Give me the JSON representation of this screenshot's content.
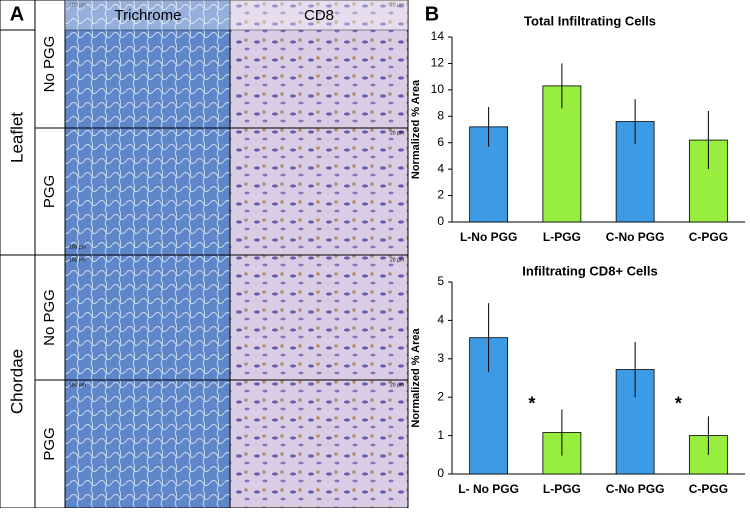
{
  "panel_a": {
    "label": "A",
    "columns": [
      "Trichrome",
      "CD8"
    ],
    "groups": [
      "Leaflet",
      "Chordae"
    ],
    "rows": [
      "No PGG",
      "PGG",
      "No PGG",
      "PGG"
    ],
    "scale_bars": [
      [
        "100 µm",
        "20 µm"
      ],
      [
        "100 µm",
        "20 µm"
      ],
      [
        "100 µm",
        "20 µm"
      ],
      [
        "100 µm",
        "20 µm"
      ]
    ]
  },
  "panel_b": {
    "label": "B"
  },
  "chart_data": [
    {
      "type": "bar",
      "title": "Total Infiltrating Cells",
      "y_label": "Normalized % Area",
      "categories": [
        "L-No PGG",
        "L-PGG",
        "C-No PGG",
        "C-PGG"
      ],
      "values": [
        7.2,
        10.3,
        7.6,
        6.2
      ],
      "errors": [
        1.5,
        1.7,
        1.7,
        2.2
      ],
      "colors": [
        "#3d9be6",
        "#98ee3f",
        "#3d9be6",
        "#98ee3f"
      ],
      "ylim": [
        0,
        14
      ],
      "yticks": [
        0,
        2,
        4,
        6,
        8,
        10,
        12,
        14
      ]
    },
    {
      "type": "bar",
      "title": "Infiltrating CD8+ Cells",
      "y_label": "Normalized % Area",
      "categories": [
        "L- No PGG",
        "L-PGG",
        "C-No PGG",
        "C-PGG"
      ],
      "values": [
        3.55,
        1.08,
        2.72,
        1.0
      ],
      "errors": [
        0.9,
        0.6,
        0.72,
        0.5
      ],
      "colors": [
        "#3d9be6",
        "#98ee3f",
        "#3d9be6",
        "#98ee3f"
      ],
      "ylim": [
        0,
        5
      ],
      "yticks": [
        0,
        1,
        2,
        3,
        4,
        5
      ],
      "annotations": [
        "*",
        "*"
      ]
    }
  ]
}
